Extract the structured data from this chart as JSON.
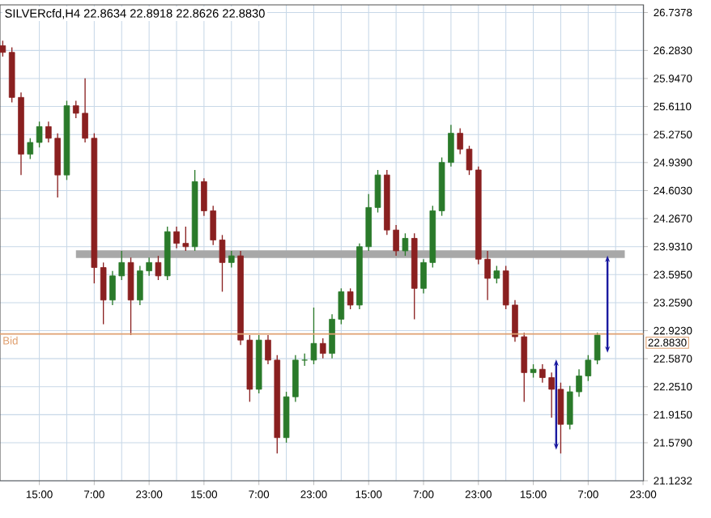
{
  "chart_data": {
    "type": "candlestick",
    "title": "SILVERcfd,H4 22.8634 22.8918 22.8626 22.8830",
    "categories": [
      null,
      null,
      null,
      null,
      "15:00",
      null,
      null,
      null,
      null,
      null,
      "7:00",
      null,
      null,
      null,
      null,
      null,
      "23:00",
      null,
      null,
      null,
      null,
      null,
      "15:00",
      null,
      null,
      null,
      null,
      null,
      "7:00",
      null,
      null,
      null,
      null,
      null,
      "23:00",
      null,
      null,
      null,
      null,
      null,
      "15:00",
      null,
      null,
      null,
      null,
      null,
      "7:00",
      null,
      null,
      null,
      null,
      null,
      "23:00",
      null,
      null,
      null,
      null,
      null,
      "15:00",
      null,
      null,
      null,
      null,
      null,
      "7:00",
      null,
      null,
      null,
      null,
      null,
      "23:00"
    ],
    "ohlc": [
      [
        26.34,
        26.4,
        26.21,
        26.26
      ],
      [
        26.26,
        26.32,
        25.66,
        25.72
      ],
      [
        25.72,
        25.78,
        24.79,
        25.04
      ],
      [
        25.04,
        25.23,
        24.98,
        25.18
      ],
      [
        25.18,
        25.43,
        25.12,
        25.37
      ],
      [
        25.37,
        25.43,
        25.18,
        25.23
      ],
      [
        25.23,
        25.29,
        24.52,
        24.79
      ],
      [
        24.79,
        25.68,
        24.73,
        25.62
      ],
      [
        25.62,
        25.68,
        25.47,
        25.53
      ],
      [
        25.53,
        25.95,
        25.18,
        25.23
      ],
      [
        25.23,
        25.29,
        23.49,
        23.68
      ],
      [
        23.68,
        23.74,
        23.0,
        23.29
      ],
      [
        23.29,
        23.64,
        23.23,
        23.58
      ],
      [
        23.58,
        23.88,
        23.53,
        23.74
      ],
      [
        23.74,
        23.8,
        22.87,
        23.29
      ],
      [
        23.29,
        23.7,
        23.23,
        23.64
      ],
      [
        23.64,
        23.8,
        23.58,
        23.74
      ],
      [
        23.74,
        23.82,
        23.53,
        23.58
      ],
      [
        23.58,
        24.17,
        23.53,
        24.11
      ],
      [
        24.11,
        24.17,
        23.91,
        23.97
      ],
      [
        23.97,
        24.17,
        23.88,
        23.93
      ],
      [
        23.93,
        24.85,
        23.88,
        24.71
      ],
      [
        24.71,
        24.75,
        24.3,
        24.36
      ],
      [
        24.36,
        24.42,
        23.95,
        24.01
      ],
      [
        24.01,
        24.07,
        23.39,
        23.74
      ],
      [
        23.74,
        23.88,
        23.68,
        23.82
      ],
      [
        23.82,
        23.88,
        22.75,
        22.81
      ],
      [
        22.81,
        22.87,
        22.07,
        22.22
      ],
      [
        22.22,
        22.87,
        22.17,
        22.81
      ],
      [
        22.81,
        22.87,
        22.52,
        22.57
      ],
      [
        22.57,
        22.63,
        21.45,
        21.64
      ],
      [
        21.64,
        22.19,
        21.58,
        22.13
      ],
      [
        22.13,
        22.63,
        22.07,
        22.57
      ],
      [
        22.57,
        22.65,
        22.5,
        22.57
      ],
      [
        22.57,
        23.2,
        22.52,
        22.77
      ],
      [
        22.77,
        22.83,
        22.59,
        22.65
      ],
      [
        22.65,
        23.12,
        22.59,
        23.06
      ],
      [
        23.06,
        23.43,
        23.0,
        23.39
      ],
      [
        23.39,
        23.43,
        23.18,
        23.23
      ],
      [
        23.23,
        23.97,
        23.18,
        23.93
      ],
      [
        23.93,
        24.56,
        23.88,
        24.4
      ],
      [
        24.4,
        24.85,
        24.34,
        24.79
      ],
      [
        24.79,
        24.85,
        24.07,
        24.13
      ],
      [
        24.13,
        24.19,
        23.82,
        23.88
      ],
      [
        23.88,
        24.09,
        23.82,
        24.03
      ],
      [
        24.03,
        24.09,
        23.06,
        23.43
      ],
      [
        23.43,
        23.78,
        23.37,
        23.74
      ],
      [
        23.74,
        24.42,
        23.68,
        24.36
      ],
      [
        24.36,
        25.0,
        24.3,
        24.94
      ],
      [
        24.94,
        25.39,
        24.89,
        25.29
      ],
      [
        25.29,
        25.35,
        25.04,
        25.1
      ],
      [
        25.1,
        25.14,
        24.79,
        24.85
      ],
      [
        24.85,
        24.89,
        23.72,
        23.78
      ],
      [
        23.78,
        23.88,
        23.29,
        23.55
      ],
      [
        23.55,
        23.7,
        23.49,
        23.64
      ],
      [
        23.64,
        23.7,
        23.18,
        23.23
      ],
      [
        23.23,
        23.29,
        22.79,
        22.85
      ],
      [
        22.85,
        22.9,
        22.07,
        22.42
      ],
      [
        22.42,
        22.52,
        22.36,
        22.46
      ],
      [
        22.46,
        22.52,
        22.3,
        22.36
      ],
      [
        22.36,
        22.42,
        21.88,
        22.22
      ],
      [
        22.22,
        22.3,
        21.45,
        21.8
      ],
      [
        21.8,
        22.26,
        21.74,
        22.19
      ],
      [
        22.19,
        22.46,
        22.13,
        22.38
      ],
      [
        22.38,
        22.63,
        22.32,
        22.57
      ],
      [
        22.57,
        22.9,
        22.52,
        22.87
      ],
      null,
      null,
      null,
      null,
      null
    ],
    "colors": [
      "#8a2020",
      "#8a2020",
      "#8a2020",
      "#2a7a2a",
      "#2a7a2a",
      "#8a2020",
      "#8a2020",
      "#2a7a2a",
      "#8a2020",
      "#8a2020",
      "#8a2020",
      "#8a2020",
      "#2a7a2a",
      "#2a7a2a",
      "#8a2020",
      "#2a7a2a",
      "#2a7a2a",
      "#8a2020",
      "#2a7a2a",
      "#8a2020",
      "#8a2020",
      "#2a7a2a",
      "#8a2020",
      "#8a2020",
      "#8a2020",
      "#2a7a2a",
      "#8a2020",
      "#8a2020",
      "#2a7a2a",
      "#8a2020",
      "#8a2020",
      "#2a7a2a",
      "#2a7a2a",
      "#2a7a2a",
      "#2a7a2a",
      "#8a2020",
      "#2a7a2a",
      "#2a7a2a",
      "#8a2020",
      "#2a7a2a",
      "#2a7a2a",
      "#2a7a2a",
      "#8a2020",
      "#8a2020",
      "#2a7a2a",
      "#8a2020",
      "#2a7a2a",
      "#2a7a2a",
      "#2a7a2a",
      "#2a7a2a",
      "#8a2020",
      "#8a2020",
      "#8a2020",
      "#8a2020",
      "#2a7a2a",
      "#8a2020",
      "#8a2020",
      "#8a2020",
      "#2a7a2a",
      "#8a2020",
      "#8a2020",
      "#8a2020",
      "#2a7a2a",
      "#2a7a2a",
      "#2a7a2a",
      "#2a7a2a",
      null,
      null,
      null,
      null,
      null
    ],
    "series": [
      {
        "type": "line",
        "color": "#a8a8a8",
        "values": [
          null,
          null,
          null,
          null,
          null,
          null,
          null,
          null,
          23.84,
          23.84,
          23.84,
          23.84,
          23.84,
          23.84,
          23.84,
          23.84,
          23.84,
          23.84,
          23.84,
          23.84,
          23.84,
          23.84,
          23.84,
          23.84,
          23.84,
          23.84,
          23.84,
          23.84,
          23.84,
          23.84,
          23.84,
          23.84,
          23.84,
          23.84,
          23.84,
          23.84,
          23.84,
          23.84,
          23.84,
          23.84,
          23.84,
          23.84,
          23.84,
          23.84,
          23.84,
          23.84,
          23.84,
          23.84,
          23.84,
          23.84,
          23.84,
          23.84,
          23.84,
          23.84,
          23.84,
          23.84,
          23.84,
          23.84,
          23.84,
          23.84,
          23.84,
          23.84,
          23.84,
          23.84,
          23.84,
          23.84,
          23.84,
          23.84,
          23.84,
          null,
          null
        ]
      }
    ],
    "ylim": [
      21.1232,
      26.83
    ],
    "yticks": [
      {
        "value": 21.1232,
        "label": "21.1232"
      },
      {
        "value": 21.579,
        "label": "21.5790"
      },
      {
        "value": 21.915,
        "label": "21.9150"
      },
      {
        "value": 22.251,
        "label": "22.2510"
      },
      {
        "value": 22.587,
        "label": "22.5870"
      },
      {
        "value": 22.923,
        "label": "22.9230"
      },
      {
        "value": 23.259,
        "label": "23.2590"
      },
      {
        "value": 23.595,
        "label": "23.5950"
      },
      {
        "value": 23.931,
        "label": "23.9310"
      },
      {
        "value": 24.267,
        "label": "24.2670"
      },
      {
        "value": 24.603,
        "label": "24.6030"
      },
      {
        "value": 24.939,
        "label": "24.9390"
      },
      {
        "value": 25.275,
        "label": "25.2750"
      },
      {
        "value": 25.611,
        "label": "25.6110"
      },
      {
        "value": 25.947,
        "label": "25.9470"
      },
      {
        "value": 26.283,
        "label": "26.2830"
      },
      {
        "value": 26.7378,
        "label": "26.7378"
      }
    ],
    "grid": true,
    "ref_lines": [
      {
        "axis": "y",
        "value": 22.883,
        "label": "Bid",
        "color": "#e0a070"
      }
    ],
    "annotations": [
      "22.8830"
    ]
  }
}
